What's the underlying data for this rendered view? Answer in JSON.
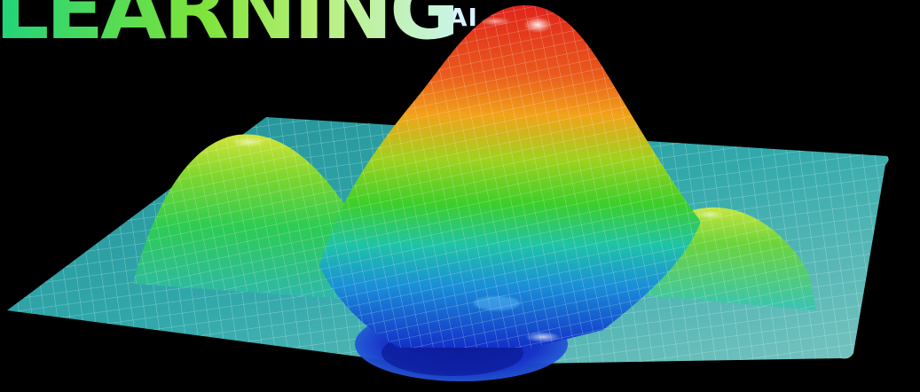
{
  "logo": {
    "text": "LEARNING",
    "suffix": ".AI"
  },
  "surface": {
    "description_colors": {
      "peak": "#e0241b",
      "high": "#f2a21a",
      "mid": "#3ccf2a",
      "low": "#1a8fd8",
      "trough": "#1230c8",
      "plane": "#3bc6c9",
      "grid": "#d8fff4"
    }
  }
}
